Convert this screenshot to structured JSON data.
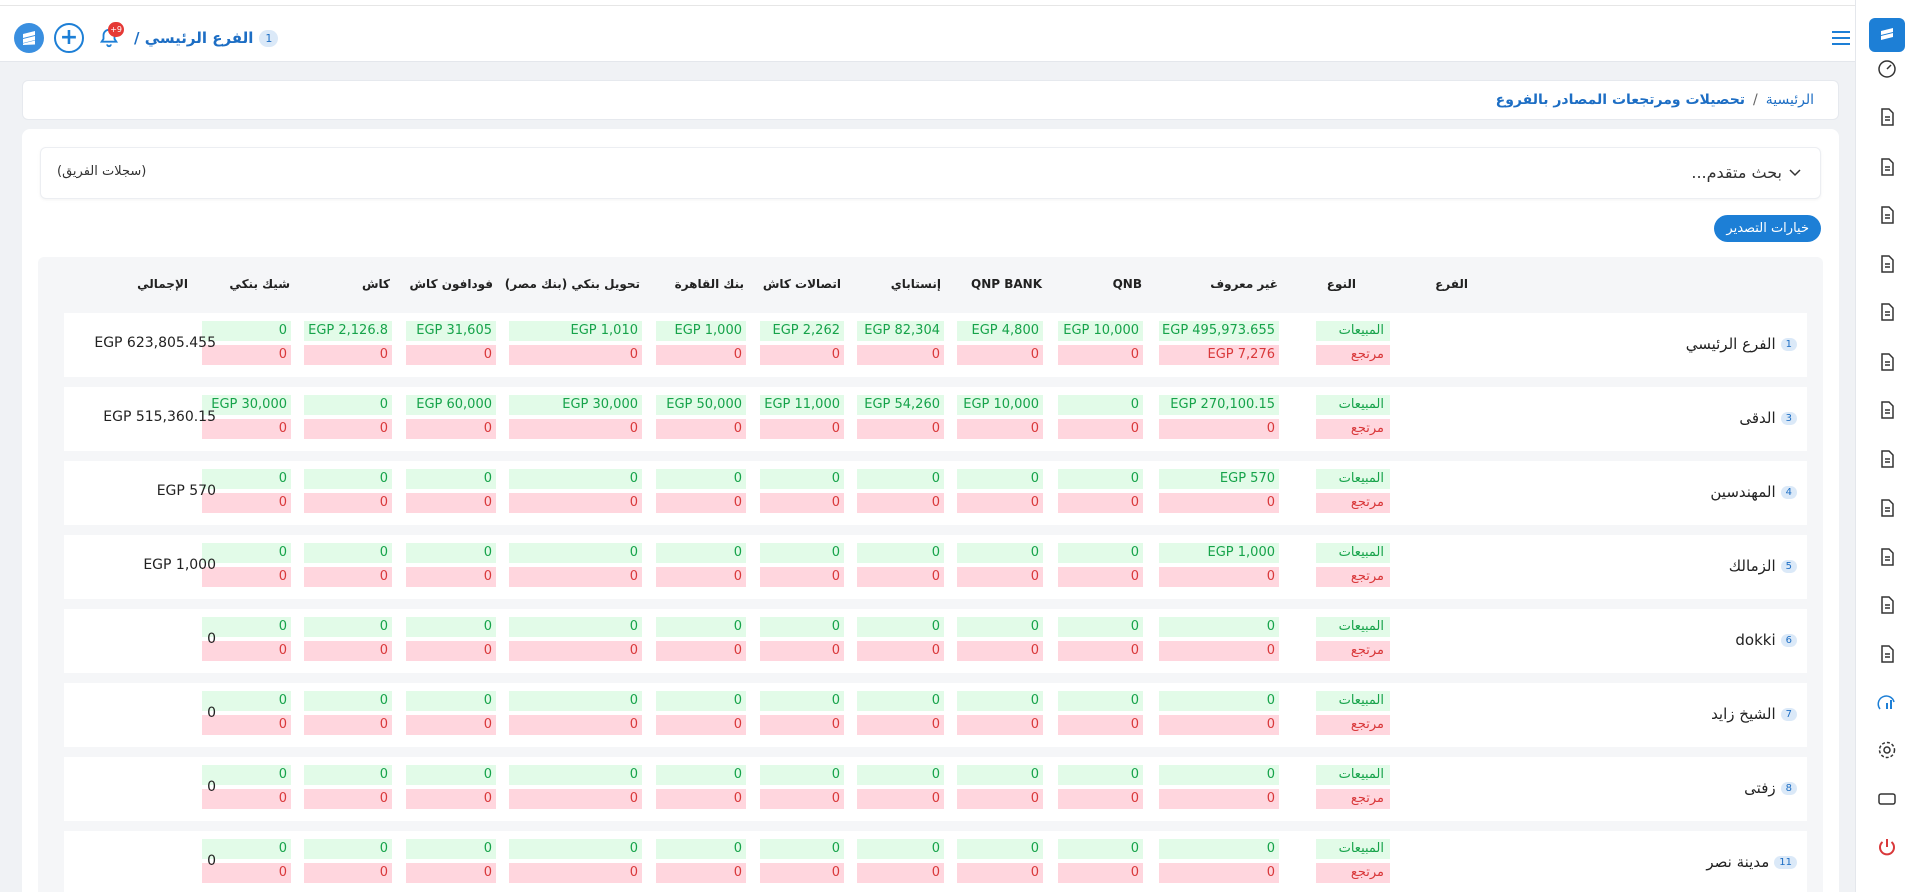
{
  "header": {
    "branch_number": "1",
    "branch_label": "الفرع الرئيسي /",
    "notification_count": "+9"
  },
  "breadcrumb": {
    "home": "الرئيسية",
    "separator": "/",
    "current": "تحصيلات ومرتجعات المصادر بالفروع"
  },
  "search": {
    "title": "بحث متقدم...",
    "team_records": "(سجلات الفريق)"
  },
  "export_label": "خيارات التصدير",
  "columns": [
    "الفرع",
    "النوع",
    "غير معروف",
    "QNB",
    "QNP BANK",
    "إنستاباي",
    "اتصالات كاش",
    "بنك القاهرة",
    "تحويل بنكي (بنك مصر)",
    "فودافون كاش",
    "كاش",
    "شيك بنكي",
    "الإجمالي"
  ],
  "type_labels": {
    "sales": "المبيعات",
    "returns": "مرتجع"
  },
  "rows": [
    {
      "num": "1",
      "branch": "الفرع الرئيسي",
      "sales": [
        "EGP 495,973.655",
        "EGP 10,000",
        "EGP 4,800",
        "EGP 82,304",
        "EGP 2,262",
        "EGP 1,000",
        "EGP 1,010",
        "EGP 31,605",
        "EGP 2,126.8",
        "0"
      ],
      "returns": [
        "EGP 7,276",
        "0",
        "0",
        "0",
        "0",
        "0",
        "0",
        "0",
        "0",
        "0"
      ],
      "total": "EGP 623,805.455"
    },
    {
      "num": "3",
      "branch": "الدقى",
      "sales": [
        "EGP 270,100.15",
        "0",
        "EGP 10,000",
        "EGP 54,260",
        "EGP 11,000",
        "EGP 50,000",
        "EGP 30,000",
        "EGP 60,000",
        "0",
        "EGP 30,000"
      ],
      "returns": [
        "0",
        "0",
        "0",
        "0",
        "0",
        "0",
        "0",
        "0",
        "0",
        "0"
      ],
      "total": "EGP 515,360.15"
    },
    {
      "num": "4",
      "branch": "المهندسين",
      "sales": [
        "EGP 570",
        "0",
        "0",
        "0",
        "0",
        "0",
        "0",
        "0",
        "0",
        "0"
      ],
      "returns": [
        "0",
        "0",
        "0",
        "0",
        "0",
        "0",
        "0",
        "0",
        "0",
        "0"
      ],
      "total": "EGP 570"
    },
    {
      "num": "5",
      "branch": "الزمالك",
      "sales": [
        "EGP 1,000",
        "0",
        "0",
        "0",
        "0",
        "0",
        "0",
        "0",
        "0",
        "0"
      ],
      "returns": [
        "0",
        "0",
        "0",
        "0",
        "0",
        "0",
        "0",
        "0",
        "0",
        "0"
      ],
      "total": "EGP 1,000"
    },
    {
      "num": "6",
      "branch": "dokki",
      "sales": [
        "0",
        "0",
        "0",
        "0",
        "0",
        "0",
        "0",
        "0",
        "0",
        "0"
      ],
      "returns": [
        "0",
        "0",
        "0",
        "0",
        "0",
        "0",
        "0",
        "0",
        "0",
        "0"
      ],
      "total": "0"
    },
    {
      "num": "7",
      "branch": "الشيخ زايد",
      "sales": [
        "0",
        "0",
        "0",
        "0",
        "0",
        "0",
        "0",
        "0",
        "0",
        "0"
      ],
      "returns": [
        "0",
        "0",
        "0",
        "0",
        "0",
        "0",
        "0",
        "0",
        "0",
        "0"
      ],
      "total": "0"
    },
    {
      "num": "8",
      "branch": "زفتى",
      "sales": [
        "0",
        "0",
        "0",
        "0",
        "0",
        "0",
        "0",
        "0",
        "0",
        "0"
      ],
      "returns": [
        "0",
        "0",
        "0",
        "0",
        "0",
        "0",
        "0",
        "0",
        "0",
        "0"
      ],
      "total": "0"
    },
    {
      "num": "11",
      "branch": "مدينة نصر",
      "sales": [
        "0",
        "0",
        "0",
        "0",
        "0",
        "0",
        "0",
        "0",
        "0",
        "0"
      ],
      "returns": [
        "0",
        "0",
        "0",
        "0",
        "0",
        "0",
        "0",
        "0",
        "0",
        "0"
      ],
      "total": "0"
    }
  ],
  "sidebar_icons": [
    "speedometer-icon",
    "truck-icon",
    "store-icon",
    "document-icon",
    "document-edit-icon",
    "file-list-icon",
    "file-chart-icon",
    "file-check-icon",
    "monitor-icon",
    "file-add-icon",
    "file-plus-icon",
    "cash-icon",
    "file-user-icon",
    "chart-icon",
    "gear-icon",
    "tablet-icon",
    "power-icon"
  ],
  "colors": {
    "accent": "#1d7fd6",
    "sales_bg": "#e2fbe8",
    "sales_text": "#16a34a",
    "returns_bg": "#ffd6de",
    "returns_text": "#d9383a"
  }
}
